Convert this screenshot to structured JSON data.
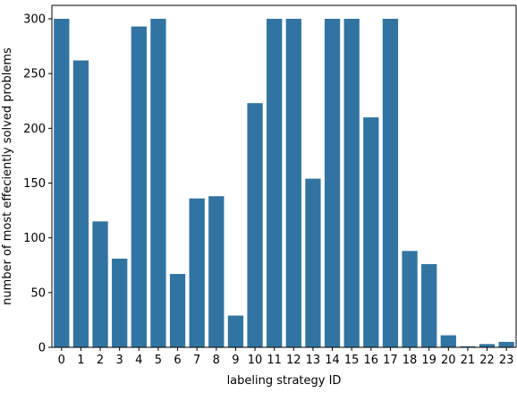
{
  "chart_data": {
    "type": "bar",
    "title": "",
    "xlabel": "labeling strategy ID",
    "ylabel": "number of most effeciently solved problems",
    "categories": [
      "0",
      "1",
      "2",
      "3",
      "4",
      "5",
      "6",
      "7",
      "8",
      "9",
      "10",
      "11",
      "12",
      "13",
      "14",
      "15",
      "16",
      "17",
      "18",
      "19",
      "20",
      "21",
      "22",
      "23"
    ],
    "values": [
      300,
      262,
      115,
      81,
      293,
      300,
      67,
      136,
      138,
      29,
      223,
      300,
      300,
      154,
      300,
      300,
      210,
      300,
      88,
      76,
      11,
      1,
      3,
      5
    ],
    "ylim": [
      0,
      300
    ],
    "yticks": [
      0,
      50,
      100,
      150,
      200,
      250,
      300
    ],
    "grid": false,
    "bar_color": "#3274a1"
  }
}
